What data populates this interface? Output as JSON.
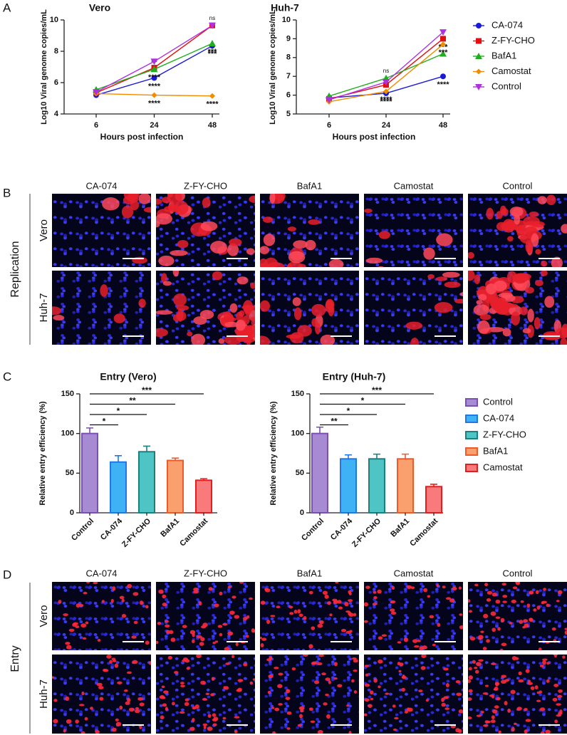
{
  "panel_labels": [
    "A",
    "B",
    "C",
    "D"
  ],
  "chart_data": [
    {
      "type": "line",
      "title": "Vero",
      "x_label": "Hours post infection",
      "y_label": "Log10 Viral genome copies/mL",
      "categories": [
        "6",
        "24",
        "48"
      ],
      "ylim": [
        4,
        10
      ],
      "yticks": [
        4,
        6,
        8,
        10
      ],
      "series": [
        {
          "color": "#1a1ad6",
          "marker": "circle",
          "values": [
            5.2,
            6.3,
            8.35
          ],
          "significance": [
            null,
            "****",
            "***"
          ]
        },
        {
          "color": "#e01010",
          "marker": "square",
          "values": [
            5.35,
            6.95,
            9.65
          ],
          "significance": [
            null,
            "ns",
            "ns"
          ]
        },
        {
          "color": "#1fae1f",
          "marker": "triangle",
          "values": [
            5.55,
            6.85,
            8.5
          ],
          "significance": [
            null,
            "****",
            "***"
          ]
        },
        {
          "color": "#f08c00",
          "marker": "diamond",
          "values": [
            5.3,
            5.2,
            5.15
          ],
          "significance": [
            null,
            "****",
            "****"
          ]
        },
        {
          "color": "#b030e0",
          "marker": "triangle-down",
          "values": [
            5.4,
            7.35,
            9.65
          ],
          "significance": [
            null,
            null,
            null
          ]
        }
      ]
    },
    {
      "type": "line",
      "title": "Huh-7",
      "x_label": "Hours post infection",
      "y_label": "Log10 Viral genome copies/mL",
      "categories": [
        "6",
        "24",
        "48"
      ],
      "ylim": [
        5,
        10
      ],
      "yticks": [
        5,
        6,
        7,
        8,
        9,
        10
      ],
      "legend": "right",
      "series": [
        {
          "name": "CA-074",
          "color": "#1a1ad6",
          "marker": "circle",
          "values": [
            5.85,
            6.1,
            7.0
          ],
          "significance": [
            null,
            "****",
            "****"
          ]
        },
        {
          "name": "Z-FY-CHO",
          "color": "#e01010",
          "marker": "square",
          "values": [
            5.8,
            6.55,
            9.0
          ],
          "significance": [
            null,
            null,
            "***"
          ]
        },
        {
          "name": "BafA1",
          "color": "#1fae1f",
          "marker": "triangle",
          "values": [
            5.95,
            6.9,
            8.2
          ],
          "significance": [
            null,
            "ns",
            null
          ]
        },
        {
          "name": "Camostat",
          "color": "#f08c00",
          "marker": "diamond",
          "values": [
            5.65,
            6.2,
            8.7
          ],
          "significance": [
            null,
            "****",
            "***"
          ]
        },
        {
          "name": "Control",
          "color": "#b030e0",
          "marker": "triangle-down",
          "values": [
            5.75,
            6.7,
            9.35
          ],
          "significance": [
            null,
            null,
            null
          ]
        }
      ]
    },
    {
      "type": "bar",
      "title": "Entry (Vero)",
      "y_label": "Relative entry efficiency (%)",
      "categories": [
        "Control",
        "CA-074",
        "Z-FY-CHO",
        "BafA1",
        "Camostat"
      ],
      "values": [
        100,
        64,
        77,
        66,
        41
      ],
      "errors": [
        7,
        8,
        7,
        3,
        2
      ],
      "colors": [
        "#a78bd2",
        "#3fb2f5",
        "#4fc4c4",
        "#f9a06e",
        "#f87a7a"
      ],
      "edge_colors": [
        "#7a4fb6",
        "#1f78e6",
        "#1a8080",
        "#f05a28",
        "#e02020"
      ],
      "significance": [
        null,
        "*",
        "*",
        "**",
        "***"
      ],
      "ylim": [
        0,
        150
      ],
      "yticks": [
        0,
        50,
        100,
        150
      ]
    },
    {
      "type": "bar",
      "title": "Entry (Huh-7)",
      "y_label": "Relative entry efficiency (%)",
      "categories": [
        "Control",
        "CA-074",
        "Z-FY-CHO",
        "BafA1",
        "Camostat"
      ],
      "values": [
        100,
        68,
        68,
        68,
        33
      ],
      "errors": [
        8,
        5,
        6,
        6,
        3
      ],
      "colors": [
        "#a78bd2",
        "#3fb2f5",
        "#4fc4c4",
        "#f9a06e",
        "#f87a7a"
      ],
      "edge_colors": [
        "#7a4fb6",
        "#1f78e6",
        "#1a8080",
        "#f05a28",
        "#e02020"
      ],
      "significance": [
        null,
        "**",
        "*",
        "*",
        "***"
      ],
      "ylim": [
        0,
        150
      ],
      "yticks": [
        0,
        50,
        100,
        150
      ],
      "legend": "right"
    }
  ],
  "image_panels": [
    {
      "side_label": "Replication",
      "columns": [
        "CA-074",
        "Z-FY-CHO",
        "BafA1",
        "Camostat",
        "Control"
      ],
      "rows": [
        "Vero",
        "Huh-7"
      ]
    },
    {
      "side_label": "Entry",
      "columns": [
        "CA-074",
        "Z-FY-CHO",
        "BafA1",
        "Camostat",
        "Control"
      ],
      "rows": [
        "Vero",
        "Huh-7"
      ]
    }
  ]
}
